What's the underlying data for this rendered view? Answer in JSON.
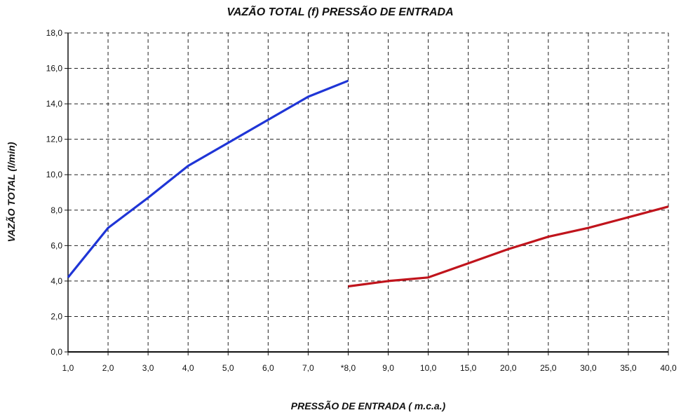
{
  "chart_data": {
    "type": "line",
    "title": "VAZÃO TOTAL (f) PRESSÃO DE ENTRADA",
    "xlabel": "PRESSÃO DE ENTRADA ( m.c.a.)",
    "ylabel": "VAZÃO TOTAL (l/min)",
    "x_categories": [
      "1,0",
      "2,0",
      "3,0",
      "4,0",
      "5,0",
      "6,0",
      "7,0",
      "*8,0",
      "9,0",
      "10,0",
      "15,0",
      "20,0",
      "25,0",
      "30,0",
      "35,0",
      "40,0"
    ],
    "y_ticks": [
      "0,0",
      "2,0",
      "4,0",
      "6,0",
      "8,0",
      "10,0",
      "12,0",
      "14,0",
      "16,0",
      "18,0"
    ],
    "ylim": [
      0,
      18
    ],
    "grid": true,
    "series": [
      {
        "color": "#1f35d6",
        "points": [
          {
            "x": "1,0",
            "y": 4.2
          },
          {
            "x": "2,0",
            "y": 7.0
          },
          {
            "x": "3,0",
            "y": 8.7
          },
          {
            "x": "4,0",
            "y": 10.5
          },
          {
            "x": "5,0",
            "y": 11.8
          },
          {
            "x": "6,0",
            "y": 13.1
          },
          {
            "x": "7,0",
            "y": 14.4
          },
          {
            "x": "*8,0",
            "y": 15.3
          }
        ]
      },
      {
        "color": "#c0141c",
        "points": [
          {
            "x": "*8,0",
            "y": 3.7
          },
          {
            "x": "9,0",
            "y": 4.0
          },
          {
            "x": "10,0",
            "y": 4.2
          },
          {
            "x": "15,0",
            "y": 5.0
          },
          {
            "x": "20,0",
            "y": 5.8
          },
          {
            "x": "25,0",
            "y": 6.5
          },
          {
            "x": "30,0",
            "y": 7.0
          },
          {
            "x": "35,0",
            "y": 7.6
          },
          {
            "x": "40,0",
            "y": 8.2
          }
        ]
      }
    ]
  }
}
